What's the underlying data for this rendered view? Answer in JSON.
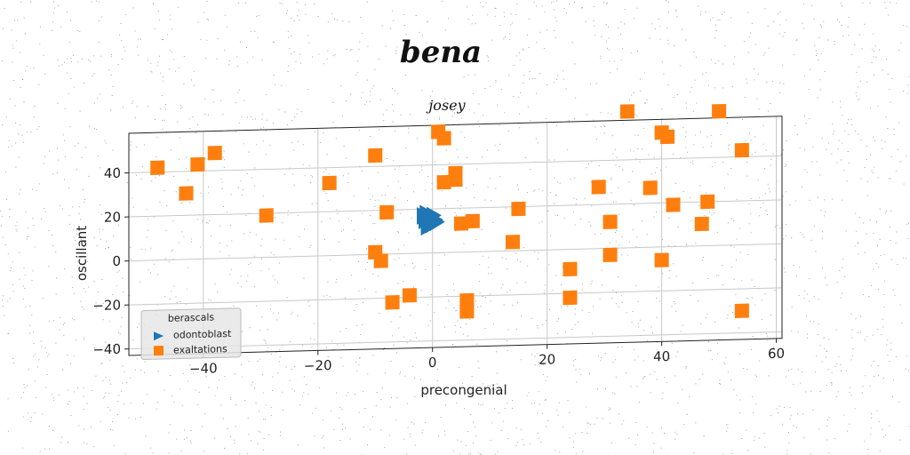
{
  "chart_data": {
    "type": "scatter",
    "title": "bena",
    "subtitle": "josey",
    "xlabel": "precongenial",
    "ylabel": "oscillant",
    "xlim": [
      -53,
      61
    ],
    "ylim": [
      -43,
      58
    ],
    "xticks": [
      -40,
      -20,
      0,
      20,
      40,
      60
    ],
    "yticks": [
      -40,
      -20,
      0,
      20,
      40
    ],
    "xtick_labels": [
      "−40",
      "−20",
      "0",
      "20",
      "40",
      "60"
    ],
    "ytick_labels": [
      "−40",
      "−20",
      "0",
      "20",
      "40"
    ],
    "grid": true,
    "legend": {
      "title": "berascals",
      "position": "lower-left"
    },
    "series": [
      {
        "name": "odontoblast",
        "marker": "triangle-right",
        "color": "#1f77b4",
        "points": [
          [
            -1.5,
            17
          ],
          [
            -1.2,
            15
          ],
          [
            -1,
            18
          ],
          [
            -0.8,
            12
          ],
          [
            -0.5,
            16
          ],
          [
            -0.3,
            14
          ],
          [
            0,
            13
          ],
          [
            0.2,
            17
          ],
          [
            0.5,
            15
          ],
          [
            0.8,
            14
          ]
        ]
      },
      {
        "name": "exaltations",
        "marker": "square",
        "color": "#ff7f0e",
        "points": [
          [
            -48,
            42
          ],
          [
            -41,
            43
          ],
          [
            -38,
            48
          ],
          [
            -43,
            30
          ],
          [
            -29,
            19
          ],
          [
            -18,
            33
          ],
          [
            -10,
            45
          ],
          [
            -8,
            19
          ],
          [
            -10,
            1
          ],
          [
            -9,
            -3
          ],
          [
            -7,
            -22
          ],
          [
            -4,
            -19
          ],
          [
            1,
            55
          ],
          [
            2,
            52
          ],
          [
            2,
            32
          ],
          [
            4,
            33
          ],
          [
            4,
            36
          ],
          [
            5,
            13
          ],
          [
            7,
            14
          ],
          [
            15,
            19
          ],
          [
            14,
            4
          ],
          [
            6,
            -22
          ],
          [
            6,
            -27
          ],
          [
            24,
            -9
          ],
          [
            24,
            -22
          ],
          [
            29,
            28
          ],
          [
            31,
            12
          ],
          [
            31,
            -3
          ],
          [
            34,
            62
          ],
          [
            38,
            27
          ],
          [
            40,
            52
          ],
          [
            41,
            50
          ],
          [
            42,
            19
          ],
          [
            40,
            -6
          ],
          [
            47,
            10
          ],
          [
            48,
            20
          ],
          [
            50,
            61
          ],
          [
            54,
            43
          ],
          [
            54,
            -30
          ]
        ]
      }
    ]
  }
}
